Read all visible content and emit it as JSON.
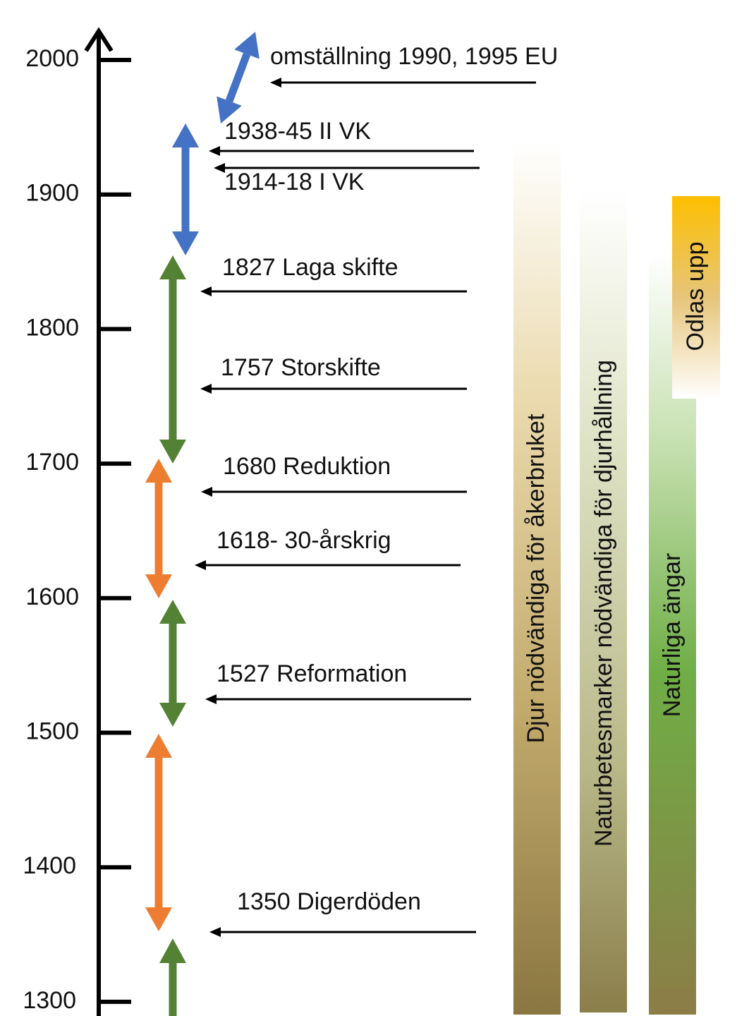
{
  "axis": {
    "ticks": [
      "2000",
      "1900",
      "1800",
      "1700",
      "1600",
      "1500",
      "1400",
      "1300"
    ]
  },
  "events": [
    {
      "label": "omställning 1990, 1995 EU"
    },
    {
      "label": "1938-45 II VK"
    },
    {
      "label": "1914-18 I VK"
    },
    {
      "label": "1827 Laga skifte"
    },
    {
      "label": "1757 Storskifte"
    },
    {
      "label": "1680 Reduktion"
    },
    {
      "label": "1618- 30-årskrig"
    },
    {
      "label": "1527 Reformation"
    },
    {
      "label": "1350 Digerdöden"
    }
  ],
  "bars": [
    {
      "label": "Djur nödvändiga för åkerbruket"
    },
    {
      "label": "Naturbetesmarker nödvändiga för djurhållning"
    },
    {
      "label": "Naturliga ängar"
    },
    {
      "label": "Odlas upp"
    }
  ]
}
